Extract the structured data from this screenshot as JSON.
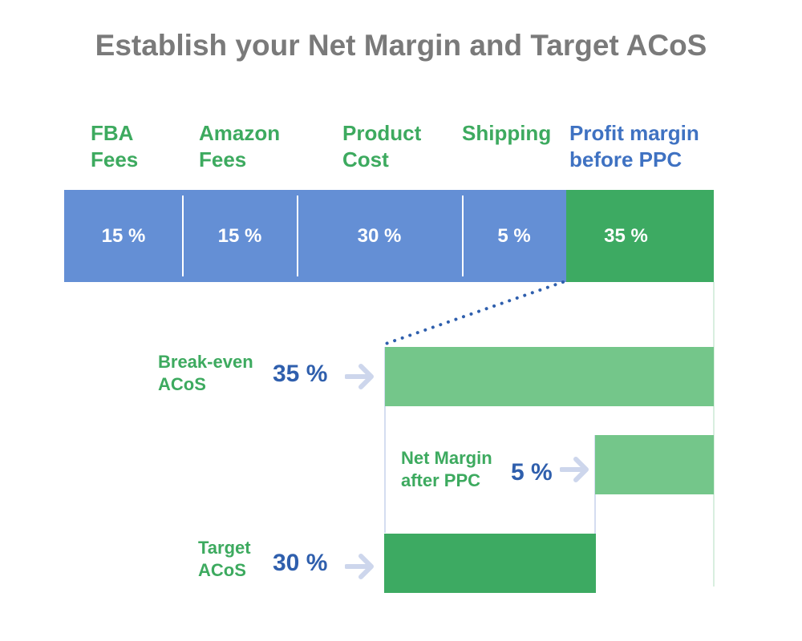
{
  "title": "Establish your Net Margin and Target ACoS",
  "colors": {
    "title": "#7a7a7a",
    "cost_label": "#3daa5f",
    "profit_label": "#3f72c2",
    "cost_bar": "#648fd5",
    "profit_bar": "#3daa62",
    "light_green": "#74c68a",
    "value_blue": "#2f5fad",
    "arrow": "#cdd6ec",
    "dotted": "#2f5fad"
  },
  "segments": [
    {
      "label": "FBA\nFees",
      "value": "15 %",
      "share": 15,
      "kind": "cost"
    },
    {
      "label": "Amazon\nFees",
      "value": "15 %",
      "share": 15,
      "kind": "cost"
    },
    {
      "label": "Product\nCost",
      "value": "30 %",
      "share": 30,
      "kind": "cost"
    },
    {
      "label": "Shipping",
      "value": "5 %",
      "share": 5,
      "kind": "cost"
    },
    {
      "label": "Profit margin\nbefore PPC",
      "value": "35 %",
      "share": 35,
      "kind": "profit"
    }
  ],
  "breakeven": {
    "label": "Break-even\nACoS",
    "value": "35 %",
    "share": 35
  },
  "net_margin": {
    "label": "Net Margin\nafter PPC",
    "value": "5 %",
    "share": 5
  },
  "target": {
    "label": "Target\nACoS",
    "value": "30 %",
    "share": 30
  }
}
